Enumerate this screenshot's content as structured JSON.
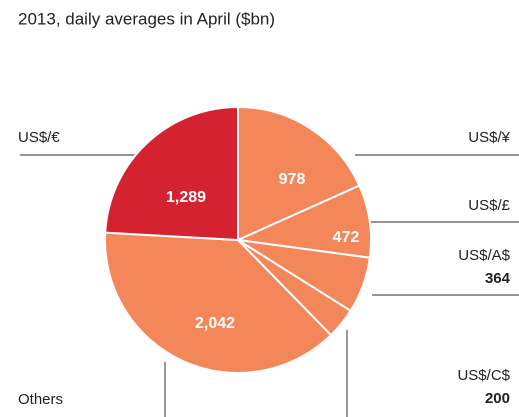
{
  "chart_data": {
    "type": "pie",
    "subtitle": "2013, daily averages in April ($bn)",
    "categories": [
      "US$/¥",
      "US$/£",
      "US$/A$",
      "US$/C$",
      "Others",
      "US$/€"
    ],
    "values": [
      978,
      472,
      364,
      200,
      2042,
      1289
    ],
    "value_labels": [
      "978",
      "472",
      "364",
      "200",
      "2,042",
      "1,289"
    ],
    "colors": [
      "#f4875a",
      "#f4875a",
      "#f4875a",
      "#f4875a",
      "#f4875a",
      "#d42230"
    ]
  }
}
